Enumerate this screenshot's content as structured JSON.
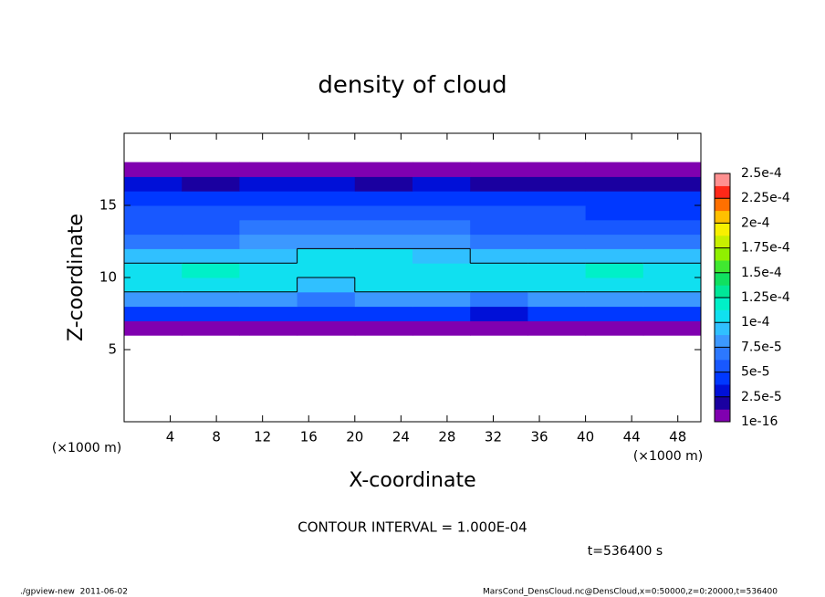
{
  "chart_data": {
    "type": "contour",
    "title": "density of cloud",
    "x_label": "X-coordinate",
    "y_label": "Z-coordinate",
    "x_unit": "(×1000 m)",
    "y_unit": "(×1000 m)",
    "xlim": [
      0,
      50
    ],
    "xticks": [
      4,
      8,
      12,
      16,
      20,
      24,
      28,
      32,
      36,
      40,
      44,
      48
    ],
    "ylim": [
      0,
      20
    ],
    "yticks": [
      5,
      10,
      15
    ],
    "x": [
      2.5,
      7.5,
      12.5,
      17.5,
      22.5,
      27.5,
      32.5,
      37.5,
      42.5,
      47.5
    ],
    "z": [
      0.5,
      1.5,
      2.5,
      3.5,
      4.5,
      5.5,
      6.5,
      7.5,
      8.5,
      9.5,
      10.5,
      11.5,
      12.5,
      13.5,
      14.5,
      15.5,
      16.5,
      17.5,
      18.5,
      19.5
    ],
    "values": [
      [
        0,
        0,
        0,
        0,
        0,
        0,
        0,
        0,
        0,
        0
      ],
      [
        0,
        0,
        0,
        0,
        0,
        0,
        0,
        0,
        0,
        0
      ],
      [
        0,
        0,
        0,
        0,
        0,
        0,
        0,
        0,
        0,
        0
      ],
      [
        0,
        0,
        0,
        0,
        0,
        0,
        0,
        0,
        0,
        0
      ],
      [
        0,
        0,
        0,
        0,
        0,
        0,
        0,
        0,
        0,
        0
      ],
      [
        0,
        0,
        0,
        0,
        0,
        0,
        0,
        0,
        0,
        0
      ],
      [
        1e-05,
        9e-06,
        1.1e-05,
        1.2e-05,
        1e-05,
        9e-06,
        8e-06,
        1e-05,
        1.1e-05,
        1e-05
      ],
      [
        4.5e-05,
        4.2e-05,
        4e-05,
        3.8e-05,
        4e-05,
        4.3e-05,
        3.6e-05,
        4.1e-05,
        4.4e-05,
        4.6e-05
      ],
      [
        8.2e-05,
        8e-05,
        7.6e-05,
        7.4e-05,
        7.8e-05,
        8.1e-05,
        7.5e-05,
        7.9e-05,
        8.3e-05,
        8.6e-05
      ],
      [
        0.000108,
        0.000112,
        0.000102,
        9.8e-05,
        0.000104,
        0.000106,
        0.000101,
        0.000105,
        0.00011,
        0.000112
      ],
      [
        0.000112,
        0.000118,
        0.000108,
        0.000105,
        0.00011,
        0.000109,
        0.000107,
        0.00011,
        0.000114,
        0.000108
      ],
      [
        9e-05,
        9.4e-05,
        9.8e-05,
        0.000102,
        0.000104,
        0.0001,
        9.6e-05,
        9.4e-05,
        9.2e-05,
        9e-05
      ],
      [
        7e-05,
        7.2e-05,
        7.8e-05,
        8.4e-05,
        8.2e-05,
        7.9e-05,
        7.4e-05,
        7.1e-05,
        6.9e-05,
        6.8e-05
      ],
      [
        6e-05,
        6.1e-05,
        6.4e-05,
        6.6e-05,
        6.5e-05,
        6.3e-05,
        6.1e-05,
        5.9e-05,
        5.8e-05,
        5.8e-05
      ],
      [
        5.2e-05,
        5.3e-05,
        5.6e-05,
        5.8e-05,
        5.4e-05,
        5.5e-05,
        5.3e-05,
        5.1e-05,
        5e-05,
        5e-05
      ],
      [
        4.6e-05,
        4.5e-05,
        4.8e-05,
        4.9e-05,
        4.4e-05,
        4.7e-05,
        4.6e-05,
        4.4e-05,
        4.3e-05,
        4.4e-05
      ],
      [
        2.6e-05,
        2.4e-05,
        2.7e-05,
        2.8e-05,
        2.2e-05,
        2.6e-05,
        2.5e-05,
        2.4e-05,
        2.3e-05,
        2.4e-05
      ],
      [
        5e-06,
        5e-06,
        5e-06,
        5e-06,
        5e-06,
        5e-06,
        5e-06,
        5e-06,
        5e-06,
        5e-06
      ],
      [
        0,
        0,
        0,
        0,
        0,
        0,
        0,
        0,
        0,
        0
      ],
      [
        0,
        0,
        0,
        0,
        0,
        0,
        0,
        0,
        0,
        0
      ]
    ],
    "contour_levels": [
      0.0001
    ],
    "color_levels": [
      {
        "value": 1e-16,
        "label": "1e-16"
      },
      {
        "value": 2.5e-05,
        "label": "2.5e-5"
      },
      {
        "value": 5e-05,
        "label": "5e-5"
      },
      {
        "value": 7.5e-05,
        "label": "7.5e-5"
      },
      {
        "value": 0.0001,
        "label": "1e-4"
      },
      {
        "value": 0.000125,
        "label": "1.25e-4"
      },
      {
        "value": 0.00015,
        "label": "1.5e-4"
      },
      {
        "value": 0.000175,
        "label": "1.75e-4"
      },
      {
        "value": 0.0002,
        "label": "2e-4"
      },
      {
        "value": 0.000225,
        "label": "2.25e-4"
      },
      {
        "value": 0.00025,
        "label": "2.5e-4"
      }
    ],
    "colors": [
      "#8000b0",
      "#1a00a0",
      "#0010d8",
      "#0038ff",
      "#1858ff",
      "#2c78ff",
      "#3c98ff",
      "#30c0ff",
      "#10e0f0",
      "#00f0c8",
      "#00e898",
      "#10e060",
      "#40e830",
      "#90f000",
      "#c8f000",
      "#f8f000",
      "#ffc000",
      "#ff7000",
      "#ff2818",
      "#ff9090"
    ],
    "contour_label": "CONTOUR INTERVAL = 1.000E-04",
    "time_label": "t=536400 s",
    "footer_left": "./gpview-new  2011-06-02",
    "footer_right": "MarsCond_DensCloud.nc@DensCloud,x=0:50000,z=0:20000,t=536400"
  }
}
